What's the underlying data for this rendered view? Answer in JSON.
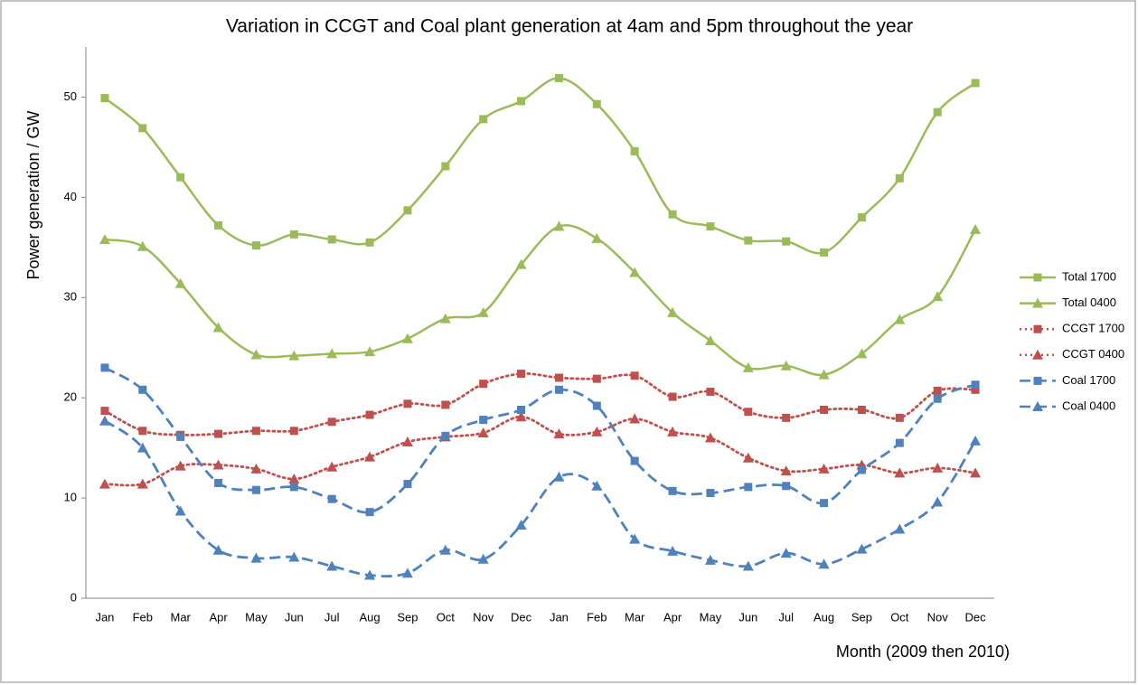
{
  "chart_data": {
    "type": "line",
    "title": "Variation in CCGT and Coal plant generation at 4am and 5pm throughout the year",
    "x_label": "Month (2009 then 2010)",
    "y_label": "Power generation / GW",
    "categories": [
      "Jan",
      "Feb",
      "Mar",
      "Apr",
      "May",
      "Jun",
      "Jul",
      "Aug",
      "Sep",
      "Oct",
      "Nov",
      "Dec",
      "Jan",
      "Feb",
      "Mar",
      "Apr",
      "May",
      "Jun",
      "Jul",
      "Aug",
      "Sep",
      "Oct",
      "Nov",
      "Dec"
    ],
    "ylim": [
      0,
      55
    ],
    "yticks": [
      0,
      10,
      20,
      30,
      40,
      50
    ],
    "grid": false,
    "smooth": true,
    "legend": "right",
    "series": [
      {
        "name": "Total 1700",
        "color": "#9bbb59",
        "marker": "square",
        "dash": "solid",
        "values": [
          49.9,
          46.9,
          42.0,
          37.2,
          35.2,
          36.3,
          35.8,
          35.5,
          38.7,
          43.1,
          47.8,
          49.6,
          51.9,
          49.3,
          44.6,
          38.3,
          37.1,
          35.7,
          35.6,
          34.5,
          38.0,
          41.9,
          48.5,
          51.4
        ]
      },
      {
        "name": "Total 0400",
        "color": "#9bbb59",
        "marker": "triangle",
        "dash": "solid",
        "values": [
          35.8,
          35.1,
          31.4,
          27.0,
          24.3,
          24.2,
          24.4,
          24.6,
          25.9,
          27.9,
          28.5,
          33.3,
          37.1,
          35.9,
          32.5,
          28.5,
          25.7,
          23.0,
          23.2,
          22.3,
          24.4,
          27.8,
          30.1,
          36.8
        ]
      },
      {
        "name": "CCGT 1700",
        "color": "#c0504d",
        "marker": "square",
        "dash": "dotted",
        "values": [
          18.7,
          16.7,
          16.3,
          16.4,
          16.7,
          16.7,
          17.6,
          18.3,
          19.4,
          19.3,
          21.4,
          22.4,
          22.0,
          21.9,
          22.2,
          20.1,
          20.6,
          18.6,
          18.0,
          18.8,
          18.8,
          18.0,
          20.7,
          20.8
        ]
      },
      {
        "name": "CCGT 0400",
        "color": "#c0504d",
        "marker": "triangle",
        "dash": "dotted",
        "values": [
          11.4,
          11.4,
          13.2,
          13.3,
          12.9,
          11.9,
          13.1,
          14.1,
          15.6,
          16.1,
          16.5,
          18.1,
          16.4,
          16.6,
          17.9,
          16.6,
          16.0,
          14.0,
          12.7,
          12.9,
          13.3,
          12.5,
          13.0,
          12.5
        ]
      },
      {
        "name": "Coal 1700",
        "color": "#4f81bd",
        "marker": "square",
        "dash": "dashed",
        "values": [
          23.0,
          20.8,
          16.1,
          11.5,
          10.8,
          11.1,
          9.9,
          8.6,
          11.4,
          16.2,
          17.8,
          18.8,
          20.8,
          19.2,
          13.7,
          10.7,
          10.5,
          11.1,
          11.2,
          9.5,
          12.8,
          15.5,
          19.9,
          21.3
        ]
      },
      {
        "name": "Coal 0400",
        "color": "#4f81bd",
        "marker": "triangle",
        "dash": "dashed",
        "values": [
          17.7,
          15.0,
          8.7,
          4.8,
          4.0,
          4.1,
          3.2,
          2.3,
          2.5,
          4.8,
          3.9,
          7.3,
          12.1,
          11.2,
          5.9,
          4.7,
          3.8,
          3.2,
          4.5,
          3.4,
          4.9,
          6.9,
          9.6,
          15.7
        ]
      }
    ]
  }
}
